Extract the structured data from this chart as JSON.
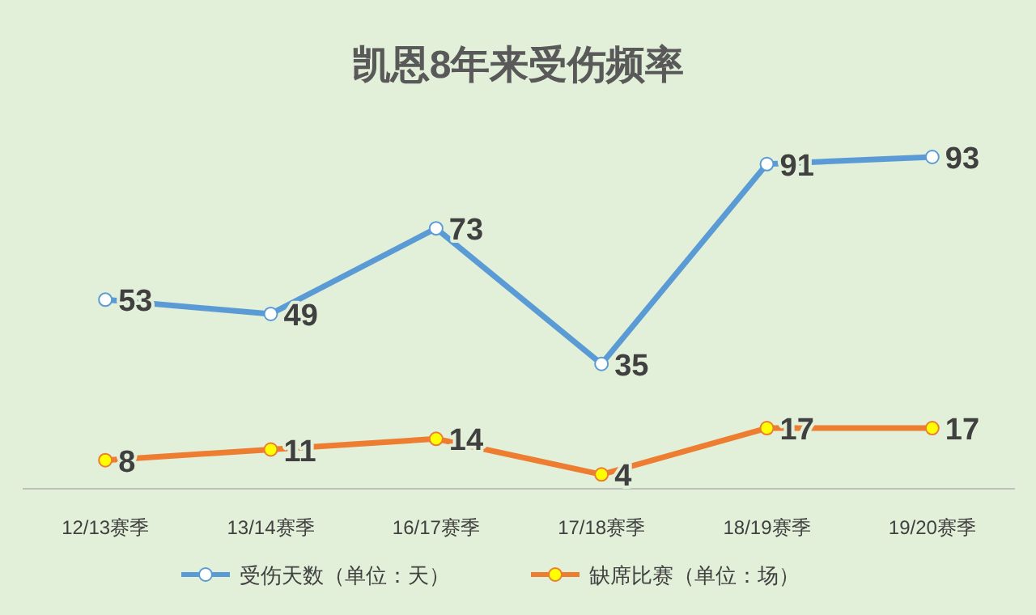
{
  "chart_data": {
    "type": "line",
    "title": "凯恩8年来受伤频率",
    "categories": [
      "12/13赛季",
      "13/14赛季",
      "16/17赛季",
      "17/18赛季",
      "18/19赛季",
      "19/20赛季"
    ],
    "series": [
      {
        "name": "受伤天数（单位：天）",
        "color": "#5b9bd5",
        "values": [
          53,
          49,
          73,
          35,
          91,
          93
        ]
      },
      {
        "name": "缺席比赛（单位：场）",
        "color": "#ed7d31",
        "values": [
          8,
          11,
          14,
          4,
          17,
          17
        ]
      }
    ],
    "data_labels": true,
    "marker": "circle",
    "legend": "bottom",
    "grid": false,
    "tick_labels": "x",
    "line_style": "solid"
  }
}
